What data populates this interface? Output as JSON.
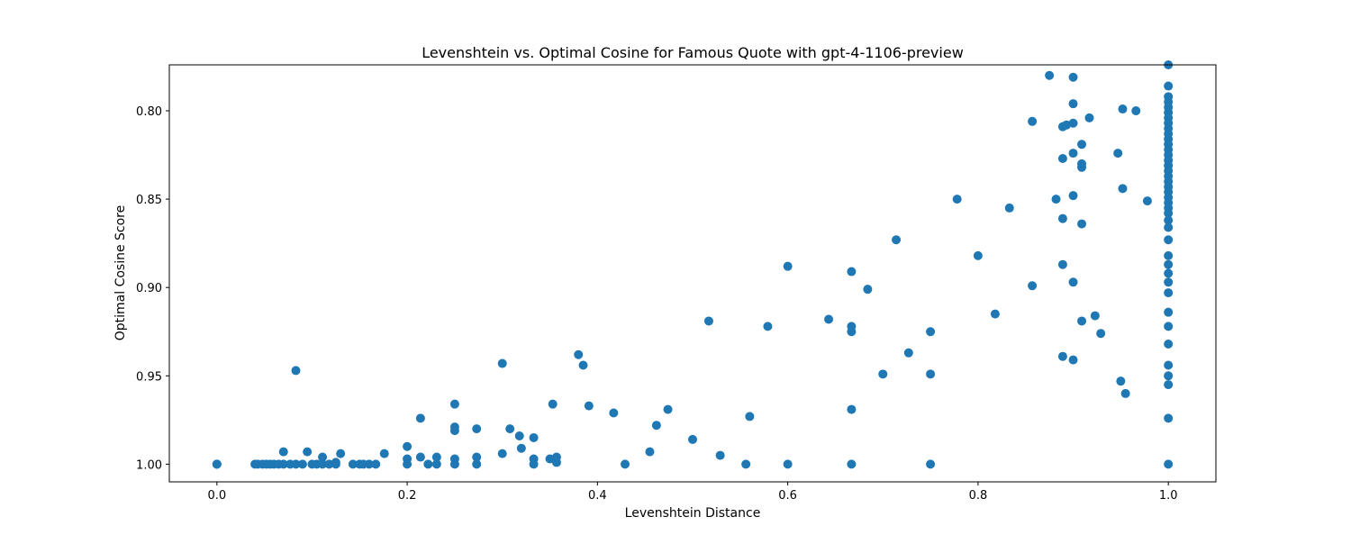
{
  "chart_data": {
    "type": "scatter",
    "title": "Levenshtein vs. Optimal Cosine for Famous Quote with gpt-4-1106-preview",
    "xlabel": "Levenshtein Distance",
    "ylabel": "Optimal Cosine Score",
    "xlim": [
      -0.05,
      1.05
    ],
    "ylim": [
      1.01,
      0.774
    ],
    "y_inverted": true,
    "xticks": [
      0.0,
      0.2,
      0.4,
      0.6,
      0.8,
      1.0
    ],
    "xtick_labels": [
      "0.0",
      "0.2",
      "0.4",
      "0.6",
      "0.8",
      "1.0"
    ],
    "yticks": [
      0.8,
      0.85,
      0.9,
      0.95,
      1.0
    ],
    "ytick_labels": [
      "0.80",
      "0.85",
      "0.90",
      "0.95",
      "1.00"
    ],
    "grid": false,
    "marker_color": "#1f77b4",
    "points": [
      [
        0.0,
        1.0
      ],
      [
        0.0,
        1.0
      ],
      [
        0.0,
        1.0
      ],
      [
        0.04,
        1.0
      ],
      [
        0.043,
        1.0
      ],
      [
        0.048,
        1.0
      ],
      [
        0.052,
        1.0
      ],
      [
        0.056,
        1.0
      ],
      [
        0.06,
        1.0
      ],
      [
        0.065,
        1.0
      ],
      [
        0.07,
        1.0
      ],
      [
        0.077,
        1.0
      ],
      [
        0.083,
        1.0
      ],
      [
        0.09,
        1.0
      ],
      [
        0.1,
        1.0
      ],
      [
        0.105,
        1.0
      ],
      [
        0.111,
        1.0
      ],
      [
        0.118,
        1.0
      ],
      [
        0.125,
        1.0
      ],
      [
        0.125,
        0.999
      ],
      [
        0.143,
        1.0
      ],
      [
        0.15,
        1.0
      ],
      [
        0.154,
        1.0
      ],
      [
        0.16,
        1.0
      ],
      [
        0.167,
        1.0
      ],
      [
        0.07,
        0.993
      ],
      [
        0.083,
        0.947
      ],
      [
        0.095,
        0.993
      ],
      [
        0.111,
        0.996
      ],
      [
        0.13,
        0.994
      ],
      [
        0.176,
        0.994
      ],
      [
        0.2,
        0.99
      ],
      [
        0.2,
        0.997
      ],
      [
        0.2,
        1.0
      ],
      [
        0.214,
        0.974
      ],
      [
        0.214,
        0.996
      ],
      [
        0.222,
        1.0
      ],
      [
        0.231,
        0.996
      ],
      [
        0.231,
        1.0
      ],
      [
        0.25,
        0.966
      ],
      [
        0.25,
        0.979
      ],
      [
        0.25,
        0.981
      ],
      [
        0.25,
        0.997
      ],
      [
        0.25,
        1.0
      ],
      [
        0.273,
        0.98
      ],
      [
        0.273,
        0.996
      ],
      [
        0.273,
        1.0
      ],
      [
        0.3,
        0.943
      ],
      [
        0.3,
        0.994
      ],
      [
        0.308,
        0.98
      ],
      [
        0.318,
        0.984
      ],
      [
        0.32,
        0.991
      ],
      [
        0.333,
        0.985
      ],
      [
        0.333,
        0.997
      ],
      [
        0.333,
        1.0
      ],
      [
        0.35,
        0.997
      ],
      [
        0.353,
        0.966
      ],
      [
        0.357,
        0.996
      ],
      [
        0.357,
        0.999
      ],
      [
        0.38,
        0.938
      ],
      [
        0.385,
        0.944
      ],
      [
        0.391,
        0.967
      ],
      [
        0.417,
        0.971
      ],
      [
        0.429,
        1.0
      ],
      [
        0.455,
        0.993
      ],
      [
        0.462,
        0.978
      ],
      [
        0.474,
        0.969
      ],
      [
        0.5,
        0.986
      ],
      [
        0.517,
        0.919
      ],
      [
        0.529,
        0.995
      ],
      [
        0.556,
        1.0
      ],
      [
        0.56,
        0.973
      ],
      [
        0.579,
        0.922
      ],
      [
        0.6,
        0.888
      ],
      [
        0.6,
        1.0
      ],
      [
        0.643,
        0.918
      ],
      [
        0.667,
        0.891
      ],
      [
        0.667,
        0.922
      ],
      [
        0.667,
        0.925
      ],
      [
        0.667,
        0.969
      ],
      [
        0.667,
        1.0
      ],
      [
        0.684,
        0.901
      ],
      [
        0.7,
        0.949
      ],
      [
        0.714,
        0.873
      ],
      [
        0.727,
        0.937
      ],
      [
        0.75,
        0.925
      ],
      [
        0.75,
        0.949
      ],
      [
        0.75,
        1.0
      ],
      [
        0.778,
        0.85
      ],
      [
        0.8,
        0.882
      ],
      [
        0.818,
        0.915
      ],
      [
        0.833,
        0.855
      ],
      [
        0.857,
        0.806
      ],
      [
        0.857,
        0.899
      ],
      [
        0.875,
        0.78
      ],
      [
        0.882,
        0.85
      ],
      [
        0.889,
        0.809
      ],
      [
        0.889,
        0.827
      ],
      [
        0.889,
        0.861
      ],
      [
        0.889,
        0.887
      ],
      [
        0.889,
        0.939
      ],
      [
        0.893,
        0.808
      ],
      [
        0.9,
        0.781
      ],
      [
        0.9,
        0.796
      ],
      [
        0.9,
        0.807
      ],
      [
        0.9,
        0.824
      ],
      [
        0.9,
        0.848
      ],
      [
        0.9,
        0.897
      ],
      [
        0.9,
        0.941
      ],
      [
        0.909,
        0.819
      ],
      [
        0.909,
        0.83
      ],
      [
        0.909,
        0.832
      ],
      [
        0.909,
        0.864
      ],
      [
        0.909,
        0.919
      ],
      [
        0.917,
        0.804
      ],
      [
        0.923,
        0.916
      ],
      [
        0.929,
        0.926
      ],
      [
        0.947,
        0.824
      ],
      [
        0.95,
        0.953
      ],
      [
        0.952,
        0.799
      ],
      [
        0.952,
        0.844
      ],
      [
        0.955,
        0.96
      ],
      [
        0.966,
        0.8
      ],
      [
        0.978,
        0.851
      ],
      [
        1.0,
        0.774
      ],
      [
        1.0,
        0.786
      ],
      [
        1.0,
        0.792
      ],
      [
        1.0,
        0.795
      ],
      [
        1.0,
        0.798
      ],
      [
        1.0,
        0.801
      ],
      [
        1.0,
        0.804
      ],
      [
        1.0,
        0.807
      ],
      [
        1.0,
        0.81
      ],
      [
        1.0,
        0.813
      ],
      [
        1.0,
        0.816
      ],
      [
        1.0,
        0.819
      ],
      [
        1.0,
        0.822
      ],
      [
        1.0,
        0.825
      ],
      [
        1.0,
        0.828
      ],
      [
        1.0,
        0.831
      ],
      [
        1.0,
        0.834
      ],
      [
        1.0,
        0.837
      ],
      [
        1.0,
        0.84
      ],
      [
        1.0,
        0.843
      ],
      [
        1.0,
        0.846
      ],
      [
        1.0,
        0.849
      ],
      [
        1.0,
        0.852
      ],
      [
        1.0,
        0.855
      ],
      [
        1.0,
        0.858
      ],
      [
        1.0,
        0.862
      ],
      [
        1.0,
        0.866
      ],
      [
        1.0,
        0.873
      ],
      [
        1.0,
        0.882
      ],
      [
        1.0,
        0.887
      ],
      [
        1.0,
        0.892
      ],
      [
        1.0,
        0.897
      ],
      [
        1.0,
        0.903
      ],
      [
        1.0,
        0.914
      ],
      [
        1.0,
        0.922
      ],
      [
        1.0,
        0.932
      ],
      [
        1.0,
        0.944
      ],
      [
        1.0,
        0.95
      ],
      [
        1.0,
        0.955
      ],
      [
        1.0,
        0.974
      ],
      [
        1.0,
        1.0
      ]
    ]
  }
}
